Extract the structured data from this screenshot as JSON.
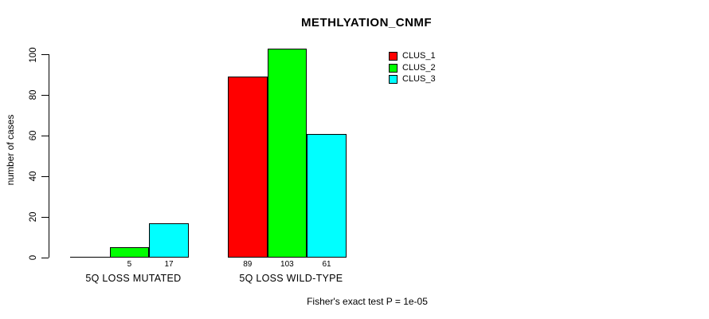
{
  "title": "METHLYATION_CNMF",
  "y_axis": {
    "label": "number of cases",
    "ticks": [
      0,
      20,
      40,
      60,
      80,
      100
    ]
  },
  "footer": "Fisher's exact test P = 1e-05",
  "legend": {
    "items": [
      {
        "label": "CLUS_1",
        "color": "#ff0000"
      },
      {
        "label": "CLUS_2",
        "color": "#00ff00"
      },
      {
        "label": "CLUS_3",
        "color": "#00ffff"
      }
    ]
  },
  "chart_data": {
    "type": "bar",
    "title": "METHLYATION_CNMF",
    "xlabel": "",
    "ylabel": "number of cases",
    "ylim": [
      0,
      100
    ],
    "grid": false,
    "legend_position": "top-right",
    "categories": [
      "5Q LOSS MUTATED",
      "5Q LOSS WILD-TYPE"
    ],
    "series": [
      {
        "name": "CLUS_1",
        "color": "#ff0000",
        "values": [
          0,
          89
        ]
      },
      {
        "name": "CLUS_2",
        "color": "#00ff00",
        "values": [
          5,
          103
        ]
      },
      {
        "name": "CLUS_3",
        "color": "#00ffff",
        "values": [
          17,
          61
        ]
      }
    ],
    "bar_value_labels_shown": true,
    "zero_value_labels_hidden": true,
    "annotation": "Fisher's exact test P = 1e-05"
  }
}
